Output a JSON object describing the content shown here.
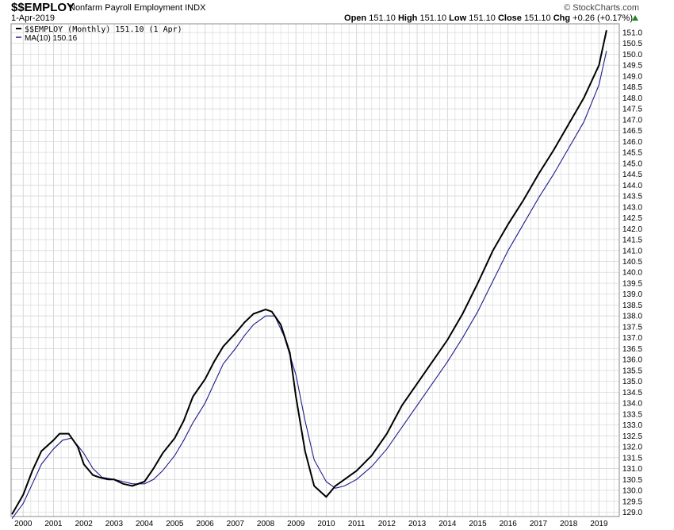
{
  "header": {
    "symbol": "$$EMPLOY",
    "description": "Nonfarm Payroll Employment",
    "type_label": "INDX",
    "date": "1-Apr-2019",
    "brand": "© StockCharts.com",
    "ohlc": {
      "open_label": "Open",
      "open": "151.10",
      "high_label": "High",
      "high": "151.10",
      "low_label": "Low",
      "low": "151.10",
      "close_label": "Close",
      "close": "151.10",
      "chg_label": "Chg",
      "chg": "+0.26 (+0.17%)"
    }
  },
  "legend": {
    "series1": "$$EMPLOY (Monthly) 151.10 (1 Apr)",
    "series2": "MA(10) 150.16"
  },
  "colors": {
    "price": "#000000",
    "ma": "#1c1c8c",
    "grid": "#d8d8d8",
    "border": "#888888",
    "up": "#1f8a1f"
  },
  "chart_data": {
    "type": "line",
    "title": "$$EMPLOY Nonfarm Payroll Employment INDX",
    "x_unit": "year",
    "xlim": [
      1999.6,
      2019.67
    ],
    "ylim": [
      128.8,
      151.4
    ],
    "y_ticks": [
      129.0,
      129.5,
      130.0,
      130.5,
      131.0,
      131.5,
      132.0,
      132.5,
      133.0,
      133.5,
      134.0,
      134.5,
      135.0,
      135.5,
      136.0,
      136.5,
      137.0,
      137.5,
      138.0,
      138.5,
      139.0,
      139.5,
      140.0,
      140.5,
      141.0,
      141.5,
      142.0,
      142.5,
      143.0,
      143.5,
      144.0,
      144.5,
      145.0,
      145.5,
      146.0,
      146.5,
      147.0,
      147.5,
      148.0,
      148.5,
      149.0,
      149.5,
      150.0,
      150.5,
      151.0
    ],
    "x_ticks": [
      2000,
      2001,
      2002,
      2003,
      2004,
      2005,
      2006,
      2007,
      2008,
      2009,
      2010,
      2011,
      2012,
      2013,
      2014,
      2015,
      2016,
      2017,
      2018,
      2019
    ],
    "grid": true,
    "legend_position": "top-left",
    "series": [
      {
        "name": "$$EMPLOY (Monthly) 151.10 (1 Apr)",
        "x": [
          1999.63,
          2000.0,
          2000.3,
          2000.6,
          2001.0,
          2001.2,
          2001.5,
          2001.8,
          2002.0,
          2002.3,
          2002.5,
          2002.8,
          2003.0,
          2003.3,
          2003.6,
          2004.0,
          2004.3,
          2004.6,
          2005.0,
          2005.3,
          2005.6,
          2006.0,
          2006.3,
          2006.6,
          2007.0,
          2007.3,
          2007.6,
          2008.0,
          2008.2,
          2008.5,
          2008.8,
          2009.0,
          2009.3,
          2009.6,
          2010.0,
          2010.3,
          2010.6,
          2011.0,
          2011.5,
          2012.0,
          2012.5,
          2013.0,
          2013.5,
          2014.0,
          2014.5,
          2015.0,
          2015.5,
          2016.0,
          2016.5,
          2017.0,
          2017.5,
          2018.0,
          2018.5,
          2019.0,
          2019.25
        ],
        "y": [
          128.9,
          129.8,
          130.9,
          131.8,
          132.3,
          132.6,
          132.6,
          132.0,
          131.2,
          130.7,
          130.6,
          130.5,
          130.5,
          130.3,
          130.2,
          130.4,
          131.0,
          131.7,
          132.4,
          133.2,
          134.3,
          135.1,
          135.9,
          136.6,
          137.2,
          137.7,
          138.1,
          138.3,
          138.2,
          137.6,
          136.3,
          134.3,
          131.8,
          130.2,
          129.7,
          130.2,
          130.5,
          130.9,
          131.6,
          132.6,
          133.9,
          134.9,
          135.9,
          136.9,
          138.1,
          139.5,
          141.0,
          142.2,
          143.3,
          144.5,
          145.6,
          146.8,
          148.0,
          149.5,
          151.1
        ]
      },
      {
        "name": "MA(10) 150.16",
        "x": [
          1999.63,
          2000.0,
          2000.3,
          2000.6,
          2001.0,
          2001.3,
          2001.6,
          2002.0,
          2002.3,
          2002.6,
          2003.0,
          2003.3,
          2003.6,
          2004.0,
          2004.3,
          2004.6,
          2005.0,
          2005.3,
          2005.6,
          2006.0,
          2006.3,
          2006.6,
          2007.0,
          2007.3,
          2007.6,
          2008.0,
          2008.3,
          2008.6,
          2009.0,
          2009.3,
          2009.6,
          2010.0,
          2010.3,
          2010.6,
          2011.0,
          2011.5,
          2012.0,
          2012.5,
          2013.0,
          2013.5,
          2014.0,
          2014.5,
          2015.0,
          2015.5,
          2016.0,
          2016.5,
          2017.0,
          2017.5,
          2018.0,
          2018.5,
          2019.0,
          2019.25
        ],
        "y": [
          128.7,
          129.4,
          130.3,
          131.2,
          131.9,
          132.3,
          132.4,
          131.7,
          131.0,
          130.6,
          130.5,
          130.4,
          130.3,
          130.3,
          130.5,
          130.9,
          131.6,
          132.3,
          133.1,
          134.0,
          134.9,
          135.8,
          136.5,
          137.1,
          137.6,
          138.0,
          138.0,
          137.1,
          135.3,
          133.2,
          131.4,
          130.4,
          130.1,
          130.2,
          130.5,
          131.1,
          131.9,
          132.9,
          133.9,
          134.9,
          135.9,
          137.0,
          138.2,
          139.6,
          141.0,
          142.2,
          143.4,
          144.5,
          145.7,
          146.9,
          148.6,
          150.16
        ]
      }
    ]
  }
}
